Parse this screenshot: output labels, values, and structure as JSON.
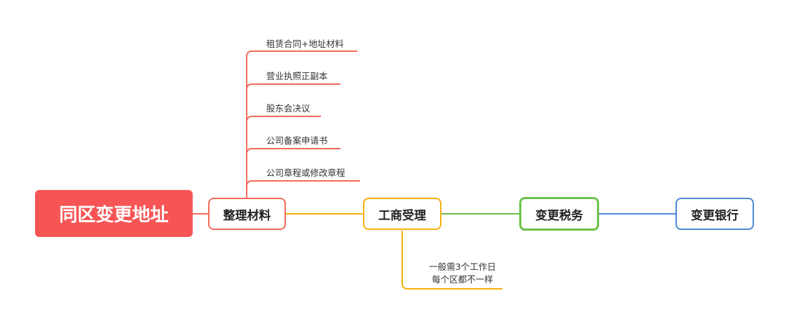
{
  "root": {
    "label": "同区变更地址",
    "color": "#f75555"
  },
  "steps": [
    {
      "label": "整理材料",
      "color": "#f26b5b",
      "children": [
        "租赁合同+地址材料",
        "营业执照正副本",
        "股东会决议",
        "公司备案申请书",
        "公司章程或修改章程"
      ]
    },
    {
      "label": "工商受理",
      "color": "#f7b10d",
      "note": [
        "一般需3个工作日",
        "每个区都不一样"
      ]
    },
    {
      "label": "变更税务",
      "color": "#6cc24a"
    },
    {
      "label": "变更银行",
      "color": "#4a88d6"
    }
  ]
}
